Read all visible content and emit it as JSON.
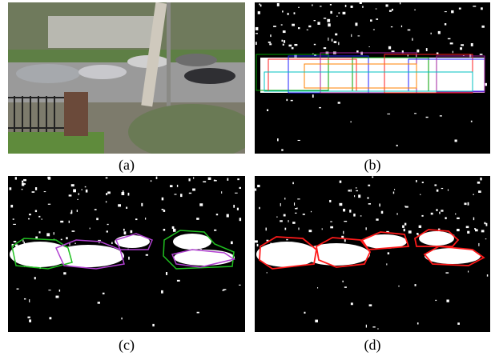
{
  "captions": [
    "(a)",
    "(b)",
    "(c)",
    "(d)"
  ]
}
